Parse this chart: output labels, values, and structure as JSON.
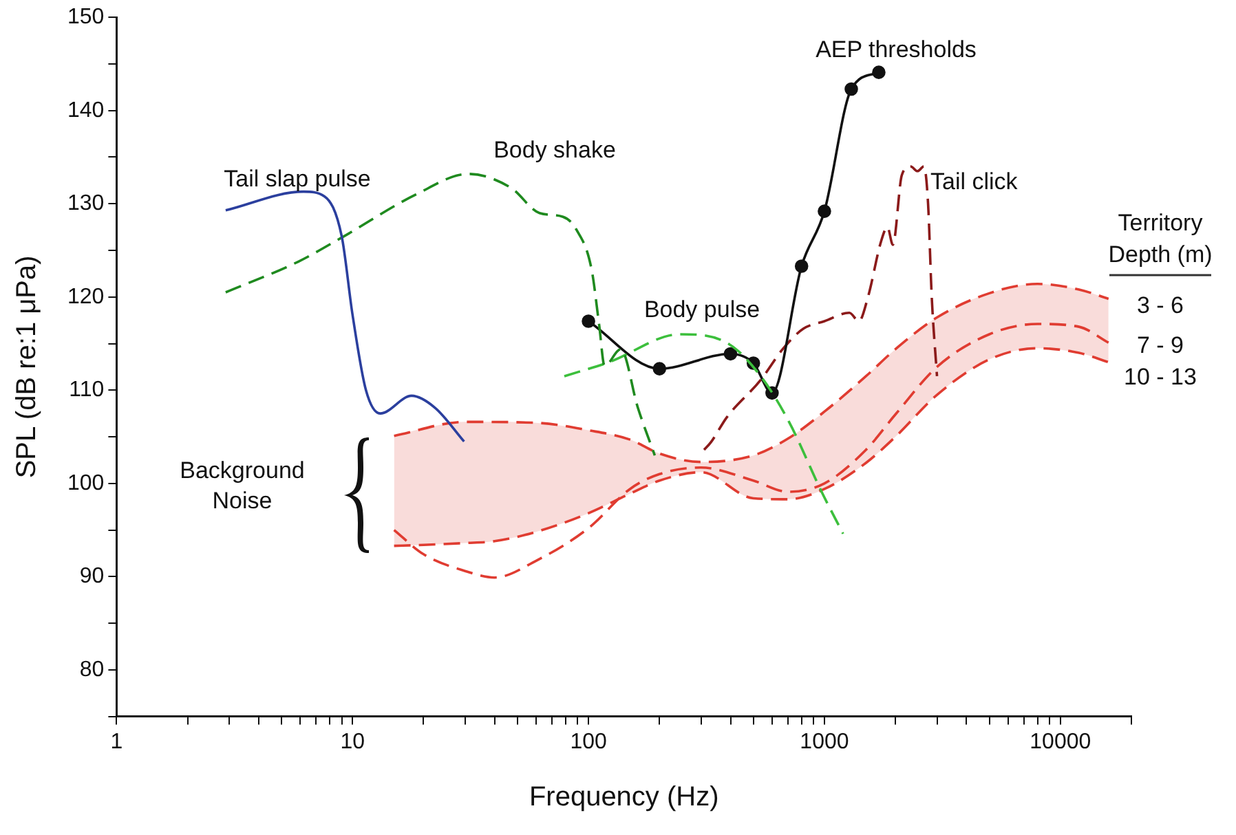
{
  "chart_data": {
    "type": "line",
    "xlabel": "Frequency (Hz)",
    "ylabel": "SPL (dB re:1 μPa)",
    "legend_title": "Territory Depth (m)",
    "annotations": [
      "Background Noise"
    ],
    "log": "x",
    "grid": false,
    "marker": "none",
    "xlim": [
      1,
      20000
    ],
    "ylim": [
      75,
      150
    ],
    "xticks": [
      1,
      {
        "value": 2,
        "label": null
      },
      {
        "value": 3,
        "label": null
      },
      {
        "value": 4,
        "label": null
      },
      {
        "value": 5,
        "label": null
      },
      {
        "value": 6,
        "label": null
      },
      {
        "value": 7,
        "label": null
      },
      {
        "value": 8,
        "label": null
      },
      {
        "value": 9,
        "label": null
      },
      10,
      {
        "value": 20,
        "label": null
      },
      {
        "value": 30,
        "label": null
      },
      {
        "value": 40,
        "label": null
      },
      {
        "value": 50,
        "label": null
      },
      {
        "value": 60,
        "label": null
      },
      {
        "value": 70,
        "label": null
      },
      {
        "value": 80,
        "label": null
      },
      {
        "value": 90,
        "label": null
      },
      100,
      {
        "value": 200,
        "label": null
      },
      {
        "value": 300,
        "label": null
      },
      {
        "value": 400,
        "label": null
      },
      {
        "value": 500,
        "label": null
      },
      {
        "value": 600,
        "label": null
      },
      {
        "value": 700,
        "label": null
      },
      {
        "value": 800,
        "label": null
      },
      {
        "value": 900,
        "label": null
      },
      1000,
      {
        "value": 2000,
        "label": null
      },
      {
        "value": 3000,
        "label": null
      },
      {
        "value": 4000,
        "label": null
      },
      {
        "value": 5000,
        "label": null
      },
      {
        "value": 6000,
        "label": null
      },
      {
        "value": 7000,
        "label": null
      },
      {
        "value": 8000,
        "label": null
      },
      {
        "value": 9000,
        "label": null
      },
      10000,
      {
        "value": 20000,
        "label": null
      }
    ],
    "yticks": [
      {
        "value": 75,
        "label": null
      },
      80,
      {
        "value": 85,
        "label": null
      },
      90,
      {
        "value": 95,
        "label": null
      },
      100,
      {
        "value": 105,
        "label": null
      },
      110,
      {
        "value": 115,
        "label": null
      },
      120,
      {
        "value": 125,
        "label": null
      },
      130,
      {
        "value": 135,
        "label": null
      },
      140,
      {
        "value": 145,
        "label": null
      },
      150
    ],
    "series": [
      {
        "name": "Tail slap pulse",
        "line_style": "solid",
        "color": "#2b3f9e",
        "x": [
          2.9,
          6.2,
          7.6,
          9,
          10,
          11.4,
          13.1,
          17.8,
          22.4,
          29.7
        ],
        "values": [
          129.3,
          131.3,
          130.8,
          126.5,
          118.1,
          110,
          107.5,
          109.4,
          108.1,
          104.5
        ]
      },
      {
        "name": "Body shake",
        "line_style": "dashed",
        "color": "#1f8a1f",
        "x": [
          2.9,
          5.9,
          8.9,
          18.6,
          31,
          47,
          62,
          78,
          89,
          103,
          111,
          117,
          137,
          162,
          191
        ],
        "values": [
          120.5,
          123.8,
          126.3,
          131,
          133.2,
          131.7,
          129,
          128.6,
          127.2,
          123,
          117,
          112.6,
          114.4,
          108.1,
          103
        ]
      },
      {
        "name": "Body pulse",
        "line_style": "dashed",
        "color": "#3cbf3c",
        "x": [
          79,
          122,
          245,
          385,
          537,
          708,
          973,
          1200
        ],
        "values": [
          111.5,
          113,
          116,
          115.1,
          111.5,
          106.6,
          99.1,
          94.6
        ]
      },
      {
        "name": "AEP thresholds",
        "line_style": "solid",
        "marker": "circle",
        "color": "#111111",
        "x": [
          100,
          200,
          400,
          500,
          600,
          800,
          1000,
          1300,
          1700
        ],
        "values": [
          117.4,
          112.3,
          113.9,
          112.9,
          109.7,
          123.3,
          129.2,
          142.3,
          144.1
        ]
      },
      {
        "name": "Tail click",
        "line_style": "dashed",
        "color": "#8b1a1a",
        "x": [
          309,
          330,
          386,
          537,
          670,
          815,
          1000,
          1275,
          1400,
          1530,
          1740,
          1850,
          1950,
          2130,
          2320,
          2480,
          2640,
          2750,
          2850,
          3000
        ],
        "values": [
          103.6,
          104.4,
          107.1,
          111.1,
          114.5,
          116.6,
          117.4,
          118.3,
          117.4,
          120,
          126,
          127.5,
          125.6,
          133.1,
          134,
          133.5,
          134,
          130,
          120,
          111.5
        ]
      },
      {
        "name": "3 - 6",
        "line_style": "dashed",
        "color": "#e03c31",
        "x": [
          15,
          30,
          60,
          100,
          150,
          200,
          300,
          500,
          700,
          1000,
          1500,
          2000,
          3000,
          5000,
          8000,
          12000,
          16000
        ],
        "values": [
          105.1,
          106.6,
          106.5,
          105.7,
          104.7,
          103.2,
          102.3,
          103,
          104.8,
          107.7,
          111.5,
          114.4,
          117.8,
          120.4,
          121.4,
          120.8,
          119.8
        ]
      },
      {
        "name": "7 - 9",
        "line_style": "dashed",
        "color": "#e03c31",
        "x": [
          15,
          20,
          30,
          40,
          60,
          100,
          150,
          200,
          300,
          500,
          700,
          1000,
          1500,
          2000,
          3000,
          5000,
          8000,
          12000,
          16000
        ],
        "values": [
          95,
          92.4,
          90.6,
          89.9,
          91.7,
          95.2,
          99.4,
          101,
          101.7,
          100.3,
          99.1,
          100,
          103.6,
          107.4,
          112.5,
          116,
          117.1,
          116.8,
          115.1
        ],
        "lower": [
          93.3,
          93.4,
          93.6,
          93.8,
          94.8,
          96.8,
          98.9,
          100.3,
          101.2,
          98.4,
          98.3,
          99.4,
          102.2,
          105,
          109.5,
          113.3,
          114.5,
          114,
          113
        ],
        "upper": [
          105.1,
          105.9,
          106.6,
          106.6,
          106.5,
          105.7,
          104.7,
          103.2,
          102.3,
          103,
          104.8,
          107.7,
          111.5,
          114.4,
          117.8,
          120.4,
          121.4,
          120.8,
          119.8
        ]
      },
      {
        "name": "10 - 13",
        "line_style": "dashed",
        "color": "#e03c31",
        "x": [
          15,
          20,
          30,
          40,
          60,
          100,
          150,
          200,
          300,
          500,
          700,
          1000,
          1500,
          2000,
          3000,
          5000,
          8000,
          12000,
          16000
        ],
        "values": [
          93.3,
          93.4,
          93.6,
          93.8,
          94.8,
          96.8,
          98.9,
          100.3,
          101.2,
          98.4,
          98.3,
          99.4,
          102.2,
          105,
          109.5,
          113.3,
          114.5,
          114,
          113
        ]
      }
    ]
  }
}
